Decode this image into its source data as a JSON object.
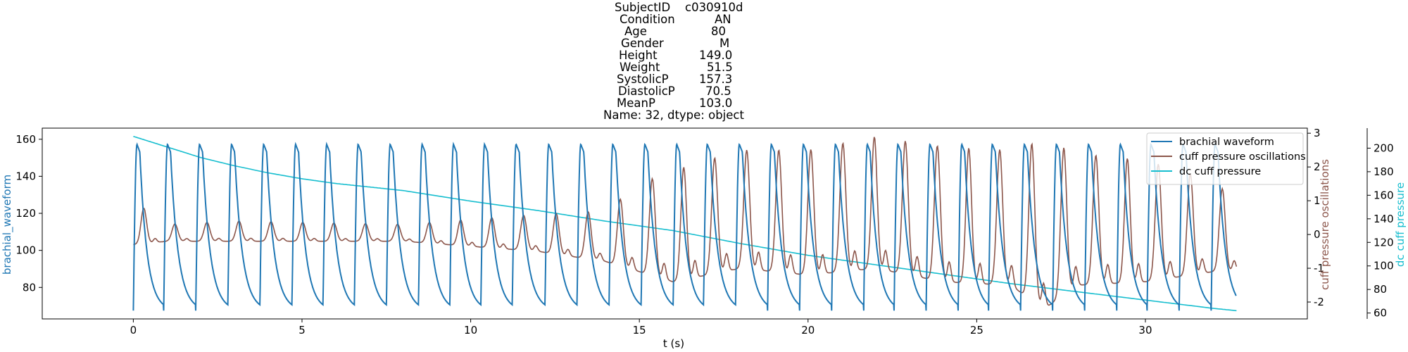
{
  "title": {
    "rows": [
      {
        "key": "SubjectID",
        "value": "c030910d"
      },
      {
        "key": "Condition",
        "value": "AN"
      },
      {
        "key": "Age",
        "value": "80"
      },
      {
        "key": "Gender",
        "value": "M"
      },
      {
        "key": "Height",
        "value": "149.0"
      },
      {
        "key": "Weight",
        "value": "51.5"
      },
      {
        "key": "SystolicP",
        "value": "157.3"
      },
      {
        "key": "DiastolicP",
        "value": "70.5"
      },
      {
        "key": "MeanP",
        "value": "103.0"
      }
    ],
    "footer": "Name: 32, dtype: object"
  },
  "chart_data": {
    "type": "line",
    "xlabel": "t (s)",
    "xlim": [
      -2.7,
      34.8
    ],
    "x_ticks": [
      0,
      5,
      10,
      15,
      20,
      25,
      30
    ],
    "grid": false,
    "legend_placement": "top-right",
    "colors": {
      "brachial": "#1f77b4",
      "oscillations": "#8c564b",
      "dc_cuff": "#17becf"
    },
    "axes": [
      {
        "id": "left",
        "label": "brachial_waveform",
        "ylim": [
          63,
          166
        ],
        "ticks": [
          80,
          100,
          120,
          140,
          160
        ],
        "color": "#1f77b4"
      },
      {
        "id": "right1",
        "label": "cuff pressure oscillations",
        "ylim": [
          -2.5,
          3.15
        ],
        "ticks": [
          -2,
          -1,
          0,
          1,
          2,
          3
        ],
        "color": "#8c564b"
      },
      {
        "id": "right2",
        "label": "dc cuff pressure",
        "ylim": [
          55,
          217
        ],
        "ticks": [
          60,
          80,
          100,
          120,
          140,
          160,
          180,
          200
        ],
        "color": "#17becf"
      }
    ],
    "series": [
      {
        "name": "brachial waveform",
        "axis": "left",
        "color": "#1f77b4",
        "beat_onsets": [
          0.0,
          0.9,
          1.85,
          2.8,
          3.75,
          4.7,
          5.62,
          6.55,
          7.5,
          8.45,
          9.38,
          10.3,
          11.23,
          12.2,
          13.15,
          14.1,
          15.05,
          16.0,
          16.9,
          17.85,
          18.8,
          19.75,
          20.7,
          21.65,
          22.55,
          23.5,
          24.45,
          25.35,
          26.3,
          27.25,
          28.2,
          29.15,
          30.05,
          31.0,
          31.95
        ],
        "systolic_peak": 157.3,
        "diastolic_trough": 67.5,
        "t_end": 32.7
      },
      {
        "name": "cuff pressure oscillations",
        "axis": "right1",
        "color": "#8c564b",
        "amplitude_profile_t": [
          0,
          1,
          3,
          8,
          12,
          14,
          15,
          16,
          18,
          20,
          22,
          24,
          26,
          27,
          28,
          30,
          32,
          32.7
        ],
        "amplitude_profile_peak": [
          1.0,
          0.3,
          0.4,
          0.3,
          0.6,
          0.7,
          1.5,
          1.9,
          2.5,
          2.5,
          2.9,
          2.6,
          2.5,
          2.8,
          2.4,
          2.2,
          1.6,
          1.0
        ],
        "amplitude_profile_trough": [
          -0.3,
          -0.2,
          -0.2,
          -0.2,
          -0.5,
          -0.8,
          -1.1,
          -1.4,
          -1.0,
          -1.2,
          -1.0,
          -1.4,
          -1.5,
          -2.2,
          -1.5,
          -1.4,
          -1.1,
          -1.1
        ],
        "start_value": -0.3,
        "end_value": -1.1
      },
      {
        "name": "dc cuff pressure",
        "axis": "right2",
        "color": "#17becf",
        "x": [
          0,
          1,
          2,
          3,
          4,
          5,
          6,
          8,
          10,
          12,
          14,
          16,
          18,
          20,
          22,
          24,
          26,
          28,
          30,
          32,
          32.7
        ],
        "y": [
          210,
          201,
          192,
          185,
          179,
          174,
          170,
          164,
          155,
          147,
          138,
          130,
          119,
          109,
          101,
          93,
          85,
          78,
          71,
          64,
          62
        ]
      }
    ]
  }
}
